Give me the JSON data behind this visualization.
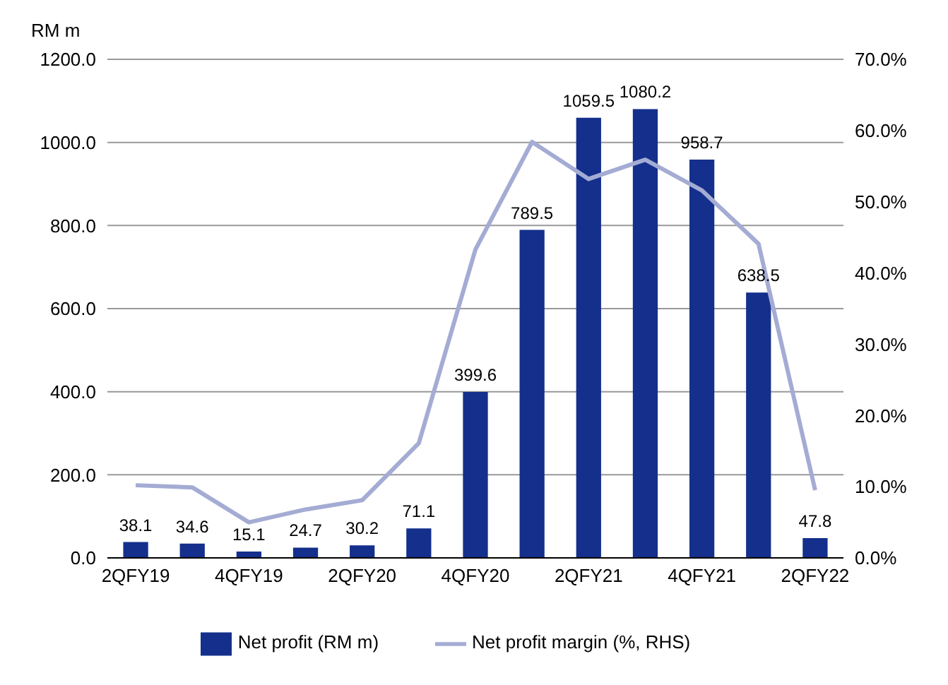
{
  "chart_data": {
    "type": "bar",
    "ylabel": "RM m",
    "categories": [
      "2QFY19",
      null,
      "4QFY19",
      null,
      "2QFY20",
      null,
      "4QFY20",
      null,
      "2QFY21",
      null,
      "4QFY21",
      null,
      "2QFY22"
    ],
    "series": [
      {
        "name": "Net profit (RM m)",
        "color": "#14308c",
        "values": [
          38.1,
          34.6,
          15.1,
          24.7,
          30.2,
          71.1,
          399.6,
          789.5,
          1059.5,
          1080.2,
          958.7,
          638.5,
          47.8
        ],
        "value_labels": [
          "38.1",
          "34.6",
          "15.1",
          "24.7",
          "30.2",
          "71.1",
          "399.6",
          "789.5",
          "1059.5",
          "1080.2",
          "958.7",
          "638.5",
          "47.8"
        ]
      },
      {
        "name": "Net profit margin (%, RHS)",
        "type": "line",
        "axis": "y2",
        "color": "#a4acd4",
        "values": [
          10.2,
          9.9,
          5.0,
          6.8,
          8.1,
          16.1,
          43.3,
          58.4,
          53.2,
          55.9,
          51.6,
          44.1,
          9.5
        ]
      }
    ],
    "ylim": [
      0,
      1200
    ],
    "yticks": [
      {
        "value": 0,
        "label": "0.0"
      },
      {
        "value": 200,
        "label": "200.0"
      },
      {
        "value": 400,
        "label": "400.0"
      },
      {
        "value": 600,
        "label": "600.0"
      },
      {
        "value": 800,
        "label": "800.0"
      },
      {
        "value": 1000,
        "label": "1000.0"
      },
      {
        "value": 1200,
        "label": "1200.0"
      }
    ],
    "y2lim": [
      0,
      70
    ],
    "y2ticks": [
      {
        "value": 0,
        "label": "0.0%"
      },
      {
        "value": 10,
        "label": "10.0%"
      },
      {
        "value": 20,
        "label": "20.0%"
      },
      {
        "value": 30,
        "label": "30.0%"
      },
      {
        "value": 40,
        "label": "40.0%"
      },
      {
        "value": 50,
        "label": "50.0%"
      },
      {
        "value": 60,
        "label": "60.0%"
      },
      {
        "value": 70,
        "label": "70.0%"
      }
    ],
    "grid": "y",
    "legend": "bottom",
    "marker": "none",
    "line_style": "solid"
  }
}
